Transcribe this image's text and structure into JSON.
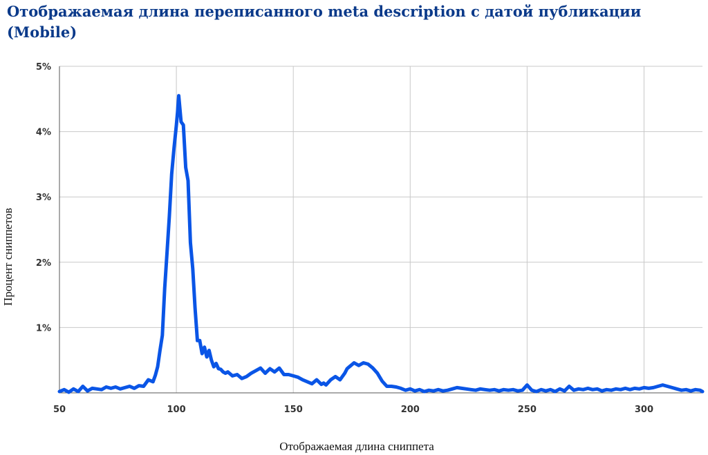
{
  "chart_data": {
    "type": "line",
    "title": "Отображаемая длина переписанного meta description с датой публикации (Mobile)",
    "xlabel": "Отображаемая длина сниппета",
    "ylabel": "Процент сниппетов",
    "xlim": [
      50,
      325
    ],
    "ylim": [
      0,
      5
    ],
    "x_ticks": [
      50,
      100,
      150,
      200,
      250,
      300
    ],
    "x_tick_labels": [
      "50",
      "100",
      "150",
      "200",
      "250",
      "300"
    ],
    "y_ticks": [
      1,
      2,
      3,
      4,
      5
    ],
    "y_tick_labels": [
      "1%",
      "2%",
      "3%",
      "4%",
      "5%"
    ],
    "grid": true,
    "legend": "none",
    "series": [
      {
        "color": "#0a55e6",
        "x": [
          50,
          52,
          54,
          56,
          58,
          60,
          62,
          64,
          66,
          68,
          70,
          72,
          74,
          76,
          78,
          80,
          82,
          84,
          86,
          88,
          90,
          91,
          92,
          93,
          94,
          95,
          96,
          97,
          98,
          99,
          100,
          100.5,
          101,
          102,
          103,
          104,
          105,
          106,
          107,
          108,
          109,
          110,
          111,
          112,
          113,
          114,
          115,
          116,
          117,
          118,
          119,
          120,
          121,
          122,
          124,
          126,
          128,
          130,
          132,
          134,
          136,
          138,
          140,
          142,
          144,
          146,
          148,
          150,
          152,
          154,
          156,
          158,
          160,
          162,
          163,
          164,
          166,
          168,
          170,
          172,
          173,
          174,
          176,
          178,
          180,
          182,
          184,
          186,
          188,
          190,
          192,
          194,
          196,
          198,
          200,
          202,
          204,
          206,
          208,
          210,
          212,
          214,
          216,
          218,
          220,
          222,
          224,
          226,
          228,
          230,
          232,
          234,
          236,
          238,
          240,
          242,
          244,
          246,
          248,
          250,
          252,
          254,
          256,
          258,
          260,
          262,
          264,
          266,
          268,
          270,
          272,
          274,
          276,
          278,
          280,
          282,
          284,
          286,
          288,
          290,
          292,
          294,
          296,
          298,
          300,
          302,
          304,
          306,
          308,
          310,
          312,
          314,
          316,
          318,
          320,
          322,
          324,
          325
        ],
        "y": [
          0.02,
          0.05,
          0.01,
          0.06,
          0.02,
          0.1,
          0.03,
          0.07,
          0.06,
          0.05,
          0.09,
          0.07,
          0.09,
          0.06,
          0.08,
          0.1,
          0.07,
          0.11,
          0.1,
          0.2,
          0.17,
          0.27,
          0.4,
          0.65,
          0.88,
          1.6,
          2.15,
          2.7,
          3.35,
          3.75,
          4.1,
          4.3,
          4.55,
          4.15,
          4.1,
          3.45,
          3.25,
          2.3,
          1.9,
          1.3,
          0.8,
          0.8,
          0.6,
          0.7,
          0.55,
          0.65,
          0.5,
          0.4,
          0.45,
          0.37,
          0.36,
          0.32,
          0.3,
          0.32,
          0.26,
          0.28,
          0.22,
          0.25,
          0.3,
          0.34,
          0.38,
          0.3,
          0.37,
          0.32,
          0.38,
          0.28,
          0.28,
          0.26,
          0.24,
          0.2,
          0.17,
          0.14,
          0.2,
          0.13,
          0.15,
          0.12,
          0.2,
          0.25,
          0.2,
          0.3,
          0.37,
          0.4,
          0.46,
          0.42,
          0.46,
          0.44,
          0.38,
          0.3,
          0.18,
          0.1,
          0.1,
          0.09,
          0.07,
          0.04,
          0.06,
          0.03,
          0.05,
          0.02,
          0.04,
          0.03,
          0.05,
          0.03,
          0.04,
          0.06,
          0.08,
          0.07,
          0.06,
          0.05,
          0.04,
          0.06,
          0.05,
          0.04,
          0.05,
          0.03,
          0.05,
          0.04,
          0.05,
          0.03,
          0.04,
          0.12,
          0.04,
          0.02,
          0.05,
          0.03,
          0.05,
          0.02,
          0.06,
          0.03,
          0.1,
          0.04,
          0.06,
          0.05,
          0.07,
          0.05,
          0.06,
          0.03,
          0.05,
          0.04,
          0.06,
          0.05,
          0.07,
          0.05,
          0.07,
          0.06,
          0.08,
          0.07,
          0.08,
          0.1,
          0.12,
          0.1,
          0.08,
          0.06,
          0.04,
          0.05,
          0.03,
          0.05,
          0.04,
          0.02
        ]
      }
    ]
  }
}
